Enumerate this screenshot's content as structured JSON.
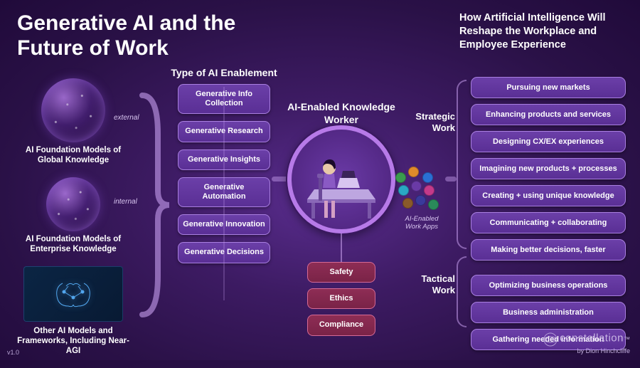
{
  "title": "Generative AI and the Future of Work",
  "subtitle": "How Artificial Intelligence Will Reshape the Workplace and Employee Experience",
  "headers": {
    "enablement": "Type of AI Enablement",
    "worker": "AI-Enabled Knowledge Worker",
    "strategic": "Strategic Work",
    "tactical": "Tactical Work"
  },
  "foundation": {
    "external_tag": "external",
    "internal_tag": "internal",
    "global": "AI Foundation Models of Global Knowledge",
    "enterprise": "AI Foundation Models of Enterprise Knowledge",
    "other": "Other AI Models and Frameworks, Including Near-AGI"
  },
  "enablement": [
    "Generative Info Collection",
    "Generative Research",
    "Generative Insights",
    "Generative Automation",
    "Generative Innovation",
    "Generative Decisions"
  ],
  "governance": [
    "Safety",
    "Ethics",
    "Compliance"
  ],
  "apps_label": "AI-Enabled Work Apps",
  "app_dot_colors": [
    "#3a9b4e",
    "#e08a2a",
    "#2a6fd4",
    "#2aa8c4",
    "#6a3aa6",
    "#c43a8a",
    "#8a5a2a",
    "#3a3a9b",
    "#2a8a5a"
  ],
  "work": {
    "strategic": [
      "Pursuing new markets",
      "Enhancing products and services",
      "Designing CX/EX experiences",
      "Imagining new products + processes",
      "Creating + using unique knowledge",
      "Communicating + collaborating",
      "Making better decisions, faster"
    ],
    "tactical": [
      "Optimizing business operations",
      "Business administration",
      "Gathering needed information"
    ]
  },
  "colors": {
    "pill_purple_bg": "#6b3fa8",
    "pill_purple_border": "#a97fe0",
    "pill_red_bg": "#8e2d55",
    "pill_red_border": "#d56a95",
    "circle_border": "#b77ae8"
  },
  "version": "v1.0",
  "credit": {
    "brand": "constellation",
    "by": "by Dion Hinchcliffe"
  }
}
